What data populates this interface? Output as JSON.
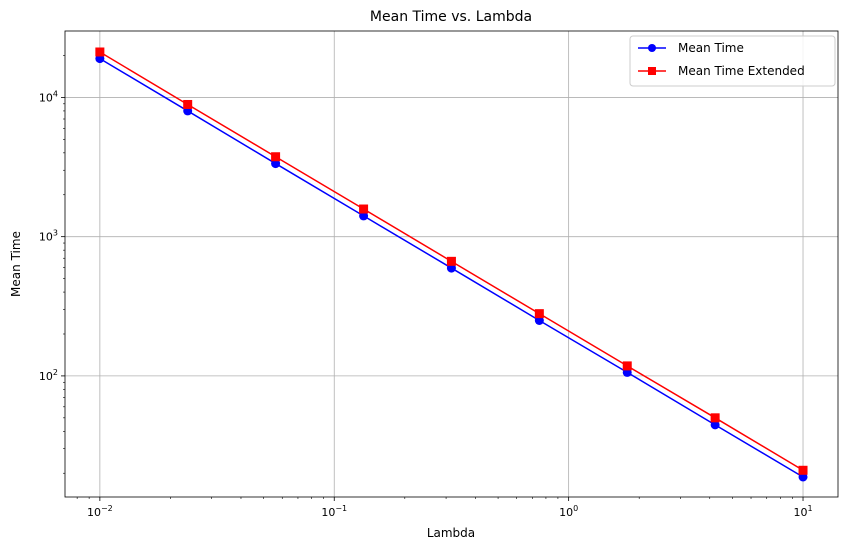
{
  "chart_data": {
    "type": "line",
    "title": "Mean Time vs. Lambda",
    "xlabel": "Lambda",
    "ylabel": "Mean Time",
    "xscale": "log",
    "yscale": "log",
    "xlim": [
      0.0071,
      14.1
    ],
    "ylim": [
      13.5,
      30000
    ],
    "grid": true,
    "legend_position": "top-right",
    "x": [
      0.01,
      0.0237,
      0.0562,
      0.1334,
      0.3162,
      0.7499,
      1.7783,
      4.217,
      10
    ],
    "series": [
      {
        "name": "Mean Time",
        "color": "#0000ff",
        "marker": "circle",
        "values": [
          19000,
          8000,
          3350,
          1410,
          595,
          250,
          106,
          44.5,
          18.8
        ]
      },
      {
        "name": "Mean Time Extended",
        "color": "#ff0000",
        "marker": "square",
        "values": [
          21200,
          8900,
          3750,
          1580,
          665,
          280,
          118,
          50,
          21
        ]
      }
    ],
    "x_ticks": [
      {
        "value": 0.01,
        "base": "10",
        "exp": "−2"
      },
      {
        "value": 0.1,
        "base": "10",
        "exp": "−1"
      },
      {
        "value": 1,
        "base": "10",
        "exp": "0"
      },
      {
        "value": 10,
        "base": "10",
        "exp": "1"
      }
    ],
    "y_ticks": [
      {
        "value": 100,
        "base": "10",
        "exp": "2"
      },
      {
        "value": 1000,
        "base": "10",
        "exp": "3"
      },
      {
        "value": 10000,
        "base": "10",
        "exp": "4"
      }
    ]
  }
}
